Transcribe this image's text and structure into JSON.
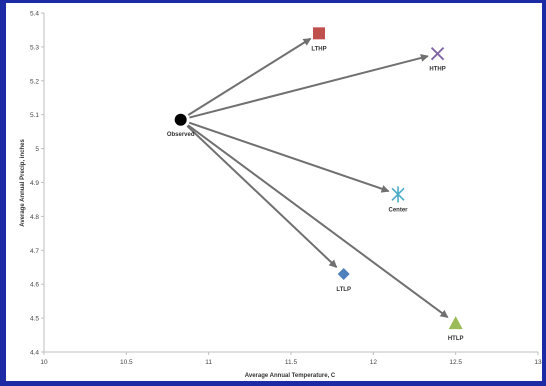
{
  "chart_data": {
    "type": "scatter",
    "title": "",
    "xlabel": "Average Annual Temperature, C",
    "ylabel": "Average Annual Precip, inches",
    "xlim": [
      10,
      13
    ],
    "ylim": [
      4.4,
      5.4
    ],
    "xticks": [
      "10",
      "10.5",
      "11",
      "11.5",
      "12",
      "12.5",
      "13"
    ],
    "yticks": [
      "4.4",
      "4.5",
      "4.6",
      "4.7",
      "4.8",
      "4.9",
      "5",
      "5.1",
      "5.2",
      "5.3",
      "5.4"
    ],
    "grid": false,
    "legend": "none",
    "points": [
      {
        "label": "Observed",
        "x": 10.83,
        "y": 5.085,
        "marker": "circle",
        "color": "#000000"
      },
      {
        "label": "LTHP",
        "x": 11.67,
        "y": 5.34,
        "marker": "square",
        "color": "#c0504d"
      },
      {
        "label": "HTHP",
        "x": 12.39,
        "y": 5.28,
        "marker": "x",
        "color": "#8064a2"
      },
      {
        "label": "Center",
        "x": 12.15,
        "y": 4.865,
        "marker": "star",
        "color": "#4bacc6"
      },
      {
        "label": "LTLP",
        "x": 11.82,
        "y": 4.63,
        "marker": "diamond",
        "color": "#4f81bd"
      },
      {
        "label": "HTLP",
        "x": 12.5,
        "y": 4.485,
        "marker": "triangle",
        "color": "#9bbb59"
      }
    ],
    "arrows": [
      {
        "from": "Observed",
        "to": "LTHP"
      },
      {
        "from": "Observed",
        "to": "HTHP"
      },
      {
        "from": "Observed",
        "to": "Center"
      },
      {
        "from": "Observed",
        "to": "LTLP"
      },
      {
        "from": "Observed",
        "to": "HTLP"
      }
    ],
    "arrow_color": "#707070"
  }
}
